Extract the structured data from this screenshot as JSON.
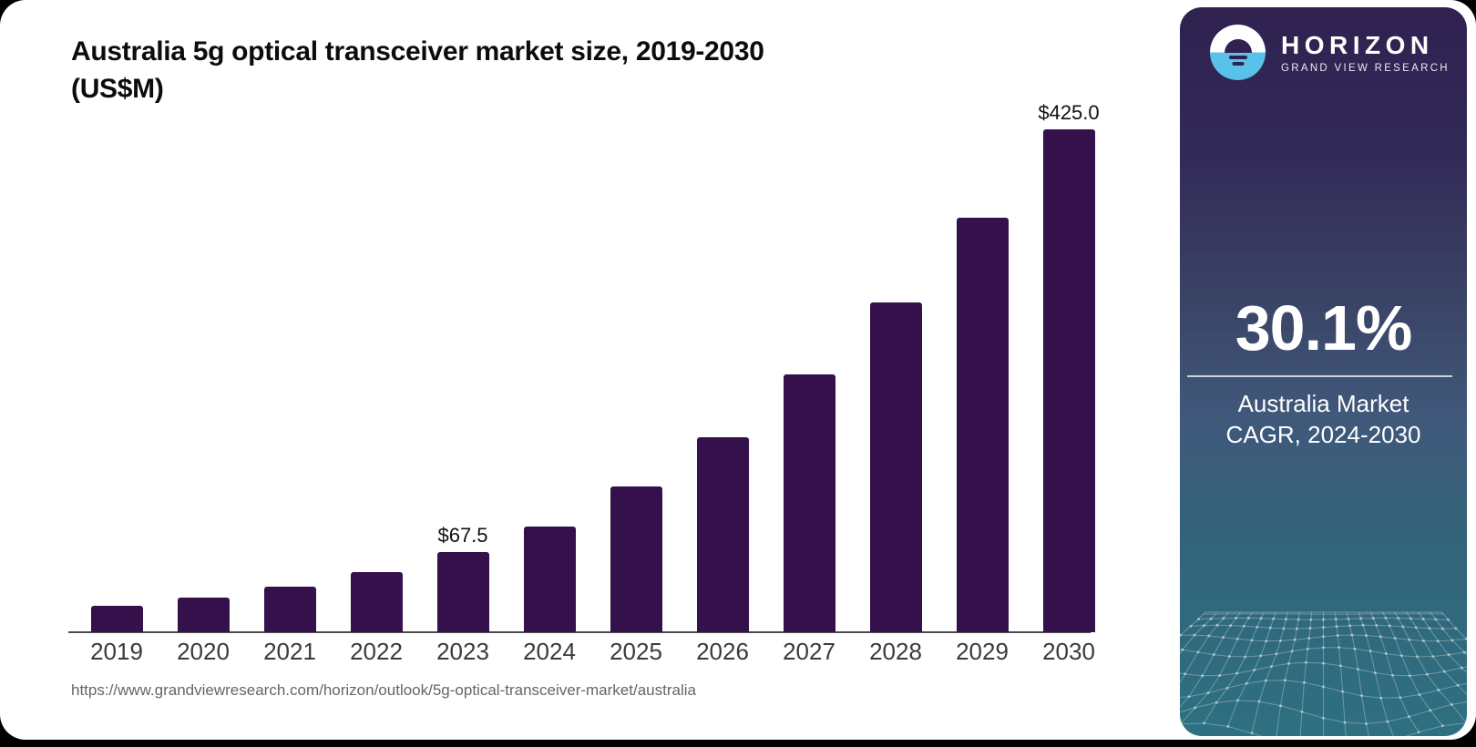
{
  "title_line1": "Australia 5g optical transceiver market size, 2019-2030",
  "title_line2": "(US$M)",
  "source_url": "https://www.grandviewresearch.com/horizon/outlook/5g-optical-transceiver-market/australia",
  "chart_data": {
    "type": "bar",
    "title": "Australia 5g optical transceiver market size, 2019-2030 (US$M)",
    "unit": "US$M",
    "categories": [
      "2019",
      "2020",
      "2021",
      "2022",
      "2023",
      "2024",
      "2025",
      "2026",
      "2027",
      "2028",
      "2029",
      "2030"
    ],
    "values": [
      22,
      29.5,
      38.5,
      51,
      67.5,
      89,
      123,
      165,
      218,
      279,
      350,
      425
    ],
    "labeled_points": [
      {
        "category": "2023",
        "label": "$67.5"
      },
      {
        "category": "2030",
        "label": "$425.0"
      }
    ],
    "xlabel": "",
    "ylabel": "",
    "ylim": [
      0,
      425
    ],
    "grid": false,
    "legend": false,
    "bar_color": "#35114B"
  },
  "sidebar": {
    "brand_name": "HORIZON",
    "brand_subtitle": "GRAND VIEW RESEARCH",
    "stat_value": "30.1%",
    "stat_label_line1": "Australia Market",
    "stat_label_line2": "CAGR, 2024-2030",
    "colors": {
      "gradient_top": "#2F2150",
      "gradient_mid": "#3D4E6C",
      "gradient_bottom": "#2E7081",
      "logo_blue": "#5AC2E8",
      "bar_purple": "#35114B"
    }
  }
}
